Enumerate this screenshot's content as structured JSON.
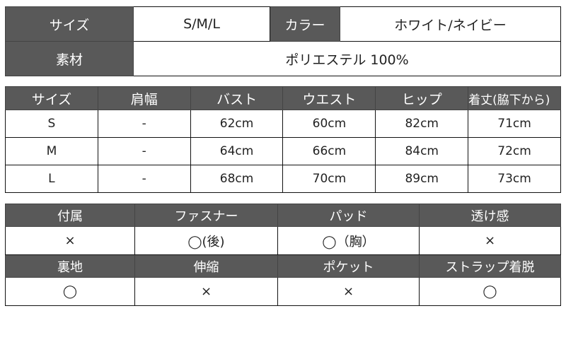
{
  "basic": {
    "size_label": "サイズ",
    "size_value": "S/M/L",
    "color_label": "カラー",
    "color_value": "ホワイト/ネイビー",
    "material_label": "素材",
    "material_value": "ポリエステル 100%"
  },
  "measurements": {
    "headers": [
      "サイズ",
      "肩幅",
      "バスト",
      "ウエスト",
      "ヒップ",
      "着丈(脇下から)"
    ],
    "rows": [
      [
        "S",
        "-",
        "62cm",
        "60cm",
        "82cm",
        "71cm"
      ],
      [
        "M",
        "-",
        "64cm",
        "66cm",
        "84cm",
        "72cm"
      ],
      [
        "L",
        "-",
        "68cm",
        "70cm",
        "89cm",
        "73cm"
      ]
    ]
  },
  "features": {
    "headers1": [
      "付属",
      "ファスナー",
      "パッド",
      "透け感"
    ],
    "values1": [
      "×",
      "◯(後)",
      "◯（胸）",
      "×"
    ],
    "headers2": [
      "裏地",
      "伸縮",
      "ポケット",
      "ストラップ着脱"
    ],
    "values2": [
      "◯",
      "×",
      "×",
      "◯"
    ]
  },
  "colors": {
    "header_bg": "#595959",
    "header_text": "#ffffff",
    "border": "#111111"
  }
}
